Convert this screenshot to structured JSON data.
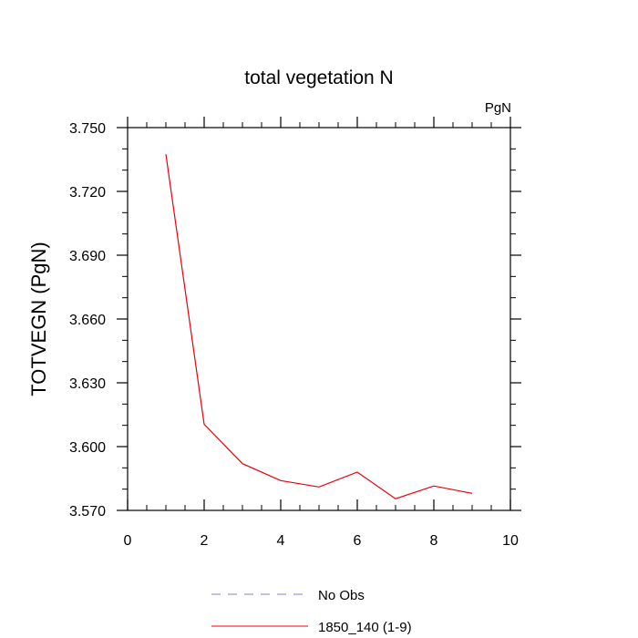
{
  "chart_data": {
    "type": "line",
    "title": "total vegetation N",
    "units_label": "PgN",
    "xlabel": "",
    "ylabel": "TOTVEGN  (PgN)",
    "xlim": [
      0,
      10
    ],
    "ylim": [
      3.57,
      3.75
    ],
    "x_ticks": [
      0,
      2,
      4,
      6,
      8,
      10
    ],
    "x_tick_labels": [
      "0",
      "2",
      "4",
      "6",
      "8",
      "10"
    ],
    "y_ticks": [
      3.57,
      3.6,
      3.63,
      3.66,
      3.69,
      3.72,
      3.75
    ],
    "y_tick_labels": [
      "3.570",
      "3.600",
      "3.630",
      "3.660",
      "3.690",
      "3.720",
      "3.750"
    ],
    "series": [
      {
        "name": "1850_140 (1-9)",
        "color": "#e8000b",
        "style": "solid",
        "x": [
          1,
          2,
          3,
          4,
          5,
          6,
          7,
          8,
          9
        ],
        "values": [
          3.7375,
          3.6105,
          3.592,
          3.584,
          3.581,
          3.588,
          3.5755,
          3.5815,
          3.578
        ]
      }
    ],
    "legend": [
      {
        "label": "No Obs",
        "color": "#8080e0",
        "style": "dashed"
      },
      {
        "label": "1850_140 (1-9)",
        "color": "#e8000b",
        "style": "solid"
      }
    ],
    "legend_position": "bottom"
  }
}
